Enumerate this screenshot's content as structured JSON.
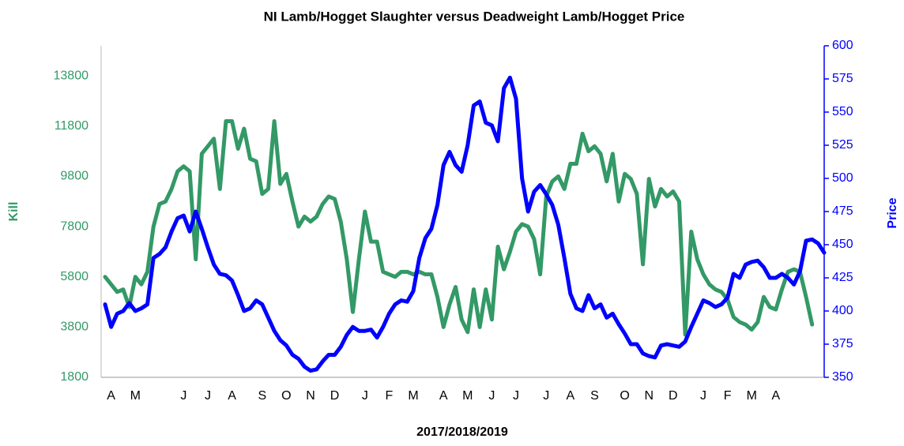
{
  "chart_data": {
    "type": "line",
    "title": "NI Lamb/Hogget Slaughter versus Deadweight Lamb/Hogget Price",
    "x_label": "2017/2018/2019",
    "y_label": "Kill",
    "y2_label": "Price",
    "categories": [
      null,
      "A",
      null,
      null,
      null,
      "M",
      null,
      null,
      null,
      null,
      null,
      null,
      null,
      "J",
      null,
      null,
      null,
      "J",
      null,
      null,
      null,
      "A",
      null,
      null,
      null,
      null,
      "S",
      null,
      null,
      null,
      "O",
      null,
      null,
      null,
      "N",
      null,
      null,
      null,
      "D",
      null,
      null,
      null,
      null,
      "J",
      null,
      null,
      null,
      "F",
      null,
      null,
      null,
      "M",
      null,
      null,
      null,
      null,
      "A",
      null,
      null,
      null,
      "M",
      null,
      null,
      null,
      "J",
      null,
      null,
      null,
      "J",
      null,
      null,
      null,
      null,
      "J",
      null,
      null,
      null,
      "A",
      null,
      null,
      null,
      "S",
      null,
      null,
      null,
      null,
      "O",
      null,
      null,
      null,
      "N",
      null,
      null,
      null,
      "D",
      null,
      null,
      null,
      null,
      "J",
      null,
      null,
      null,
      "F",
      null,
      null,
      null,
      "M",
      null,
      null,
      null,
      "A",
      null,
      null,
      null,
      null,
      null,
      null,
      null,
      null
    ],
    "series": [
      {
        "name": "Kill",
        "color": "#339966",
        "axis": "y",
        "values": [
          5800,
          5500,
          5200,
          5300,
          4600,
          5800,
          5500,
          6000,
          7800,
          8700,
          8800,
          9300,
          10000,
          10200,
          10000,
          6500,
          10700,
          11000,
          11300,
          9300,
          12000,
          12000,
          10900,
          11700,
          10500,
          10400,
          9100,
          9300,
          12000,
          9500,
          9900,
          8800,
          7800,
          8200,
          8000,
          8200,
          8700,
          9000,
          8900,
          8000,
          6500,
          4400,
          6500,
          8400,
          7200,
          7200,
          6000,
          5900,
          5800,
          6000,
          6000,
          5900,
          6000,
          5900,
          5900,
          5000,
          3800,
          4700,
          5400,
          4100,
          3600,
          5300,
          3800,
          5300,
          4100,
          7000,
          6100,
          6800,
          7600,
          7900,
          7800,
          7300,
          5900,
          9000,
          9600,
          9800,
          9300,
          10300,
          10300,
          11500,
          10800,
          11000,
          10700,
          9600,
          10700,
          8800,
          9900,
          9700,
          9100,
          6300,
          9700,
          8600,
          9300,
          9000,
          9200,
          8800,
          3500,
          7600,
          6500,
          5900,
          5500,
          5300,
          5200,
          4900,
          4200,
          4000,
          3900,
          3700,
          4000,
          5000,
          4600,
          4500,
          5300,
          6000,
          6100,
          6000,
          5000,
          3900,
          null,
          null
        ]
      },
      {
        "name": "Price",
        "color": "#0000ff",
        "axis": "y2",
        "values": [
          405,
          388,
          398,
          400,
          406,
          400,
          402,
          405,
          440,
          443,
          448,
          460,
          470,
          472,
          460,
          475,
          462,
          448,
          435,
          428,
          427,
          423,
          412,
          400,
          402,
          408,
          405,
          395,
          385,
          378,
          374,
          367,
          364,
          358,
          355,
          356,
          362,
          367,
          367,
          373,
          382,
          388,
          385,
          385,
          386,
          380,
          388,
          398,
          405,
          408,
          407,
          415,
          440,
          455,
          462,
          480,
          510,
          520,
          510,
          505,
          525,
          555,
          558,
          542,
          540,
          528,
          568,
          576,
          560,
          500,
          475,
          490,
          495,
          488,
          480,
          465,
          440,
          413,
          402,
          400,
          412,
          402,
          405,
          395,
          398,
          390,
          383,
          375,
          375,
          368,
          366,
          365,
          374,
          375,
          374,
          373,
          377,
          388,
          398,
          408,
          406,
          403,
          405,
          410,
          428,
          425,
          435,
          437,
          438,
          433,
          425,
          425,
          428,
          425,
          420,
          430,
          453,
          454,
          451,
          444
        ]
      }
    ],
    "ylim": [
      1800,
      15000
    ],
    "yticks": [
      1800,
      3800,
      5800,
      7800,
      9800,
      11800,
      13800
    ],
    "y2lim": [
      350,
      600
    ],
    "y2ticks": [
      350,
      375,
      400,
      425,
      450,
      475,
      500,
      525,
      550,
      575,
      600
    ],
    "grid": false
  }
}
